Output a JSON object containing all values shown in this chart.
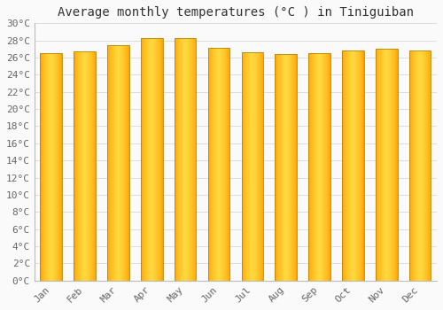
{
  "title": "Average monthly temperatures (°C ) in Tiniguiban",
  "months": [
    "Jan",
    "Feb",
    "Mar",
    "Apr",
    "May",
    "Jun",
    "Jul",
    "Aug",
    "Sep",
    "Oct",
    "Nov",
    "Dec"
  ],
  "values": [
    26.5,
    26.7,
    27.4,
    28.3,
    28.3,
    27.1,
    26.6,
    26.4,
    26.5,
    26.8,
    27.0,
    26.8
  ],
  "bar_color_center": "#FFD740",
  "bar_color_edge": "#FFA000",
  "background_color": "#FAFAFA",
  "plot_bg_color": "#FAFAFA",
  "grid_color": "#DDDDDD",
  "ytick_labels": [
    "0°C",
    "2°C",
    "4°C",
    "6°C",
    "8°C",
    "10°C",
    "12°C",
    "14°C",
    "16°C",
    "18°C",
    "20°C",
    "22°C",
    "24°C",
    "26°C",
    "28°C",
    "30°C"
  ],
  "ytick_values": [
    0,
    2,
    4,
    6,
    8,
    10,
    12,
    14,
    16,
    18,
    20,
    22,
    24,
    26,
    28,
    30
  ],
  "ylim": [
    0,
    30
  ],
  "title_fontsize": 10,
  "tick_fontsize": 8,
  "bar_width": 0.65,
  "font_family": "monospace"
}
